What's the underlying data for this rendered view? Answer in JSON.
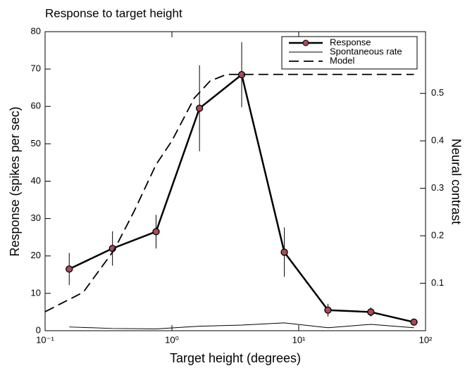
{
  "chart_data": {
    "type": "line",
    "title": "Response to target height",
    "xlabel": "Target height (degrees)",
    "ylabel": "Response (spikes per sec)",
    "y2label": "Neural contrast",
    "xscale": "log",
    "xlim": [
      0.1,
      100
    ],
    "xticks": [
      {
        "value": 0.1,
        "label": "10⁻¹"
      },
      {
        "value": 1,
        "label": "10⁰"
      },
      {
        "value": 10,
        "label": "10¹"
      },
      {
        "value": 100,
        "label": "10²"
      }
    ],
    "ylim": [
      0,
      80
    ],
    "yticks": [
      0,
      10,
      20,
      30,
      40,
      50,
      60,
      70,
      80
    ],
    "y2lim": [
      0,
      0.63
    ],
    "y2ticks": [
      0.1,
      0.2,
      0.3,
      0.4,
      0.5
    ],
    "legend": "upper right",
    "series": [
      {
        "name": "Response",
        "color": "#000000",
        "marker_color": "#a84a5c",
        "style": "solid",
        "width": 2.5,
        "x": [
          0.155,
          0.34,
          0.75,
          1.65,
          3.55,
          7.7,
          17,
          37,
          81
        ],
        "values": [
          16.5,
          22,
          26.5,
          59.5,
          68.5,
          21,
          5.5,
          5,
          2.3
        ],
        "errors": [
          4.3,
          4.6,
          4.5,
          11.5,
          8.7,
          6.6,
          1.7,
          1.2,
          0.5
        ]
      },
      {
        "name": "Spontaneous rate",
        "color": "#000000",
        "style": "solid",
        "width": 1,
        "x": [
          0.155,
          0.34,
          0.75,
          1.65,
          3.55,
          7.7,
          17,
          37,
          81
        ],
        "values": [
          1,
          0.6,
          0.5,
          1.2,
          1.5,
          2.1,
          0.8,
          1.7,
          0.8
        ]
      },
      {
        "name": "Model",
        "color": "#000000",
        "style": "dashed",
        "width": 1.8,
        "axis": "y2",
        "x": [
          0.1,
          0.2,
          0.35,
          0.5,
          0.75,
          1,
          1.5,
          2,
          2.7,
          3.5,
          81
        ],
        "values": [
          0.04,
          0.081,
          0.17,
          0.25,
          0.35,
          0.4,
          0.49,
          0.526,
          0.54,
          0.54,
          0.54
        ]
      }
    ]
  }
}
